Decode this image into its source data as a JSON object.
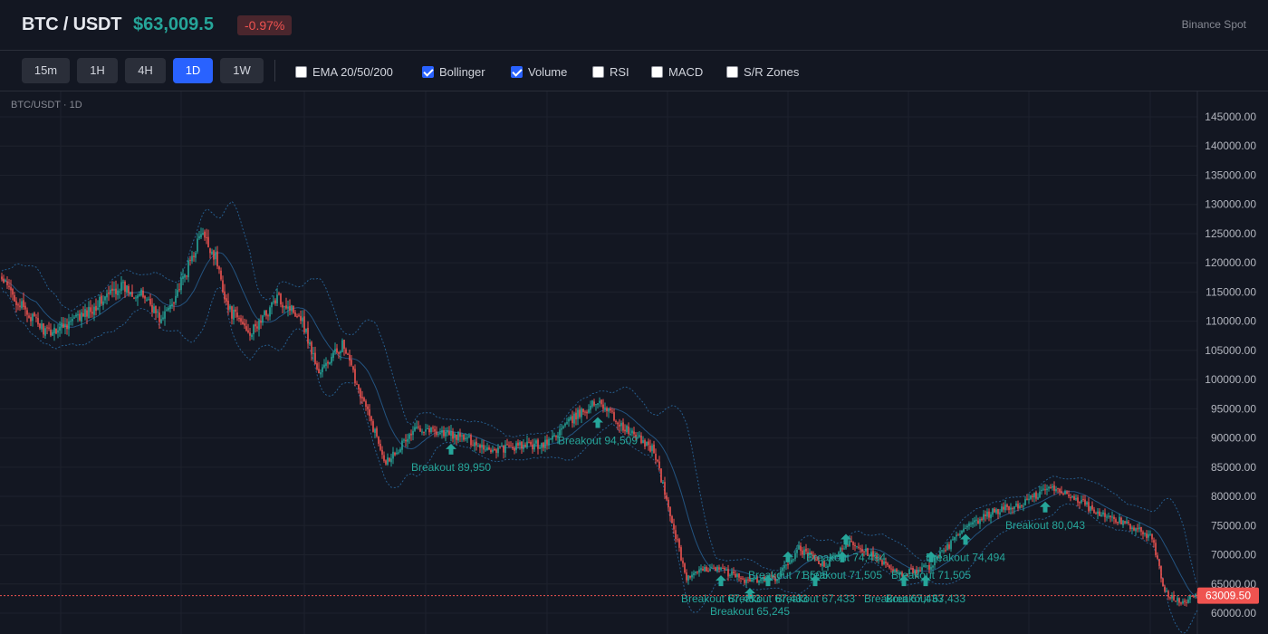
{
  "header": {
    "symbol": "BTC / USDT",
    "price": "$63,009.5",
    "change": "-0.97%",
    "exchange": "Binance Spot"
  },
  "toolbar": {
    "timeframes": [
      {
        "label": "15m",
        "active": false
      },
      {
        "label": "1H",
        "active": false
      },
      {
        "label": "4H",
        "active": false
      },
      {
        "label": "1D",
        "active": true
      },
      {
        "label": "1W",
        "active": false
      }
    ],
    "indicators": [
      {
        "label": "EMA 20/50/200",
        "checked": false
      },
      {
        "label": "Bollinger",
        "checked": true
      },
      {
        "label": "Volume",
        "checked": true
      },
      {
        "label": "RSI",
        "checked": false
      },
      {
        "label": "MACD",
        "checked": false
      },
      {
        "label": "S/R Zones",
        "checked": false
      }
    ]
  },
  "chart": {
    "pane_title": "BTC/USDT · 1D",
    "last_price_label": "63009.50",
    "colors": {
      "up": "#26a69a",
      "down": "#ef5350",
      "grid": "#1e222d",
      "band": "#2b6ea8"
    }
  },
  "chart_data": {
    "type": "candlestick",
    "y_ticks": [
      "145000.00",
      "140000.00",
      "135000.00",
      "130000.00",
      "125000.00",
      "120000.00",
      "115000.00",
      "110000.00",
      "105000.00",
      "100000.00",
      "95000.00",
      "90000.00",
      "85000.00",
      "80000.00",
      "75000.00",
      "70000.00",
      "65000.00",
      "60000.00"
    ],
    "ylim": [
      58000,
      147000
    ],
    "last_price": 63009.5,
    "close_path": [
      {
        "i": 0,
        "v": 117000
      },
      {
        "i": 12,
        "v": 112000
      },
      {
        "i": 25,
        "v": 108000
      },
      {
        "i": 45,
        "v": 111000
      },
      {
        "i": 65,
        "v": 116000
      },
      {
        "i": 80,
        "v": 114000
      },
      {
        "i": 88,
        "v": 110000
      },
      {
        "i": 100,
        "v": 117000
      },
      {
        "i": 110,
        "v": 125000
      },
      {
        "i": 118,
        "v": 121000
      },
      {
        "i": 125,
        "v": 112000
      },
      {
        "i": 138,
        "v": 108000
      },
      {
        "i": 152,
        "v": 114000
      },
      {
        "i": 165,
        "v": 111000
      },
      {
        "i": 175,
        "v": 101000
      },
      {
        "i": 188,
        "v": 106000
      },
      {
        "i": 200,
        "v": 96000
      },
      {
        "i": 212,
        "v": 86000
      },
      {
        "i": 230,
        "v": 92000
      },
      {
        "i": 255,
        "v": 90000
      },
      {
        "i": 270,
        "v": 88000
      },
      {
        "i": 300,
        "v": 89000
      },
      {
        "i": 318,
        "v": 94000
      },
      {
        "i": 330,
        "v": 96500
      },
      {
        "i": 342,
        "v": 92000
      },
      {
        "i": 360,
        "v": 88000
      },
      {
        "i": 368,
        "v": 78000
      },
      {
        "i": 378,
        "v": 66000
      },
      {
        "i": 392,
        "v": 68000
      },
      {
        "i": 412,
        "v": 65500
      },
      {
        "i": 428,
        "v": 66000
      },
      {
        "i": 440,
        "v": 71000
      },
      {
        "i": 455,
        "v": 68000
      },
      {
        "i": 468,
        "v": 72500
      },
      {
        "i": 480,
        "v": 70000
      },
      {
        "i": 495,
        "v": 66500
      },
      {
        "i": 512,
        "v": 68000
      },
      {
        "i": 530,
        "v": 74000
      },
      {
        "i": 548,
        "v": 77500
      },
      {
        "i": 562,
        "v": 78500
      },
      {
        "i": 578,
        "v": 81500
      },
      {
        "i": 592,
        "v": 80000
      },
      {
        "i": 605,
        "v": 77000
      },
      {
        "i": 620,
        "v": 75500
      },
      {
        "i": 635,
        "v": 73000
      },
      {
        "i": 642,
        "v": 63500
      },
      {
        "i": 652,
        "v": 62000
      },
      {
        "i": 660,
        "v": 63009.5
      }
    ],
    "breakouts": [
      {
        "i": 248,
        "v": 89950,
        "label": "Breakout 89,950"
      },
      {
        "i": 329,
        "v": 94509,
        "label": "Breakout 94,509"
      },
      {
        "i": 397,
        "v": 67433,
        "label": "Breakout 67,433"
      },
      {
        "i": 413,
        "v": 65245,
        "label": "Breakout 65,245"
      },
      {
        "i": 423,
        "v": 67433,
        "label": "Breakout 67,433"
      },
      {
        "i": 434,
        "v": 71505,
        "label": "Breakout 71,505"
      },
      {
        "i": 449,
        "v": 67433,
        "label": "Breakout 67,433"
      },
      {
        "i": 464,
        "v": 71505,
        "label": "Breakout 71,505"
      },
      {
        "i": 466,
        "v": 74494,
        "label": "Breakout 74,494"
      },
      {
        "i": 498,
        "v": 67433,
        "label": "Breakout 67,433"
      },
      {
        "i": 510,
        "v": 67433,
        "label": "Breakout 67,433"
      },
      {
        "i": 513,
        "v": 71505,
        "label": "Breakout 71,505"
      },
      {
        "i": 532,
        "v": 74494,
        "label": "Breakout 74,494"
      },
      {
        "i": 576,
        "v": 80043,
        "label": "Breakout 80,043"
      }
    ]
  }
}
